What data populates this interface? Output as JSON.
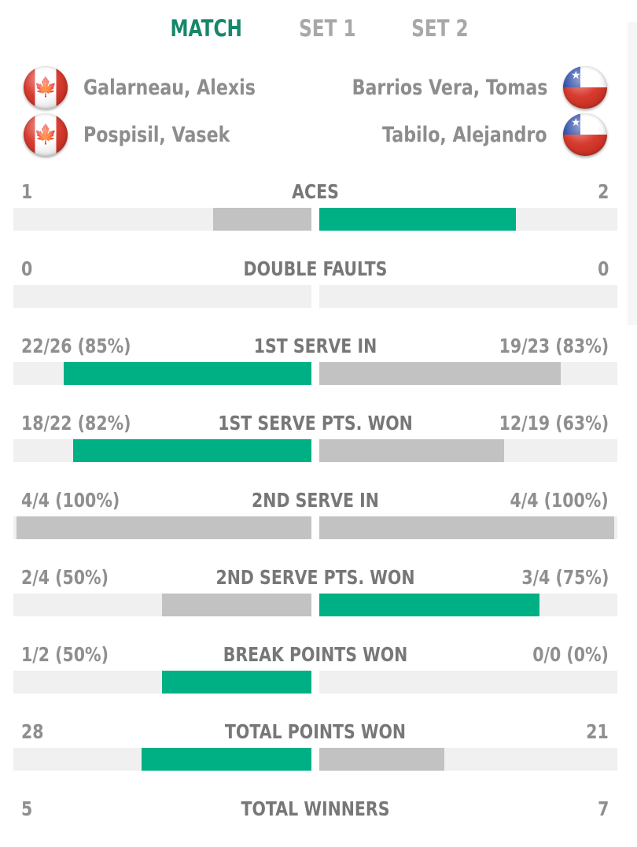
{
  "tabs": [
    {
      "label": "MATCH",
      "active": true
    },
    {
      "label": "SET 1",
      "active": false
    },
    {
      "label": "SET 2",
      "active": false
    }
  ],
  "players": {
    "left": [
      {
        "name": "Galarneau, Alexis",
        "flag": "canada-flag-icon"
      },
      {
        "name": "Pospisil, Vasek",
        "flag": "canada-flag-icon"
      }
    ],
    "right": [
      {
        "name": "Barrios Vera, Tomas",
        "flag": "chile-flag-icon"
      },
      {
        "name": "Tabilo, Alejandro",
        "flag": "chile-flag-icon"
      }
    ]
  },
  "colors": {
    "accent": "#17876a",
    "winner_bar": "#00b085",
    "loser_bar": "#c2c2c2",
    "track": "#f0f0f0"
  },
  "stats": [
    {
      "name": "ACES",
      "left": "1",
      "right": "2",
      "left_fill": 0.33,
      "right_fill": 0.66,
      "leader": "right"
    },
    {
      "name": "DOUBLE FAULTS",
      "left": "0",
      "right": "0",
      "left_fill": 0,
      "right_fill": 0,
      "leader": "none"
    },
    {
      "name": "1ST SERVE IN",
      "left": "22/26 (85%)",
      "right": "19/23 (83%)",
      "left_fill": 0.83,
      "right_fill": 0.81,
      "leader": "left"
    },
    {
      "name": "1ST SERVE PTS. WON",
      "left": "18/22 (82%)",
      "right": "12/19 (63%)",
      "left_fill": 0.8,
      "right_fill": 0.62,
      "leader": "left"
    },
    {
      "name": "2ND SERVE IN",
      "left": "4/4 (100%)",
      "right": "4/4 (100%)",
      "left_fill": 0.99,
      "right_fill": 0.99,
      "leader": "none"
    },
    {
      "name": "2ND SERVE PTS. WON",
      "left": "2/4 (50%)",
      "right": "3/4 (75%)",
      "left_fill": 0.5,
      "right_fill": 0.74,
      "leader": "right"
    },
    {
      "name": "BREAK POINTS WON",
      "left": "1/2 (50%)",
      "right": "0/0 (0%)",
      "left_fill": 0.5,
      "right_fill": 0,
      "leader": "left"
    },
    {
      "name": "TOTAL POINTS WON",
      "left": "28",
      "right": "21",
      "left_fill": 0.57,
      "right_fill": 0.42,
      "leader": "left"
    },
    {
      "name": "TOTAL WINNERS",
      "left": "5",
      "right": "7",
      "left_fill": null,
      "right_fill": null,
      "leader": "right"
    }
  ]
}
